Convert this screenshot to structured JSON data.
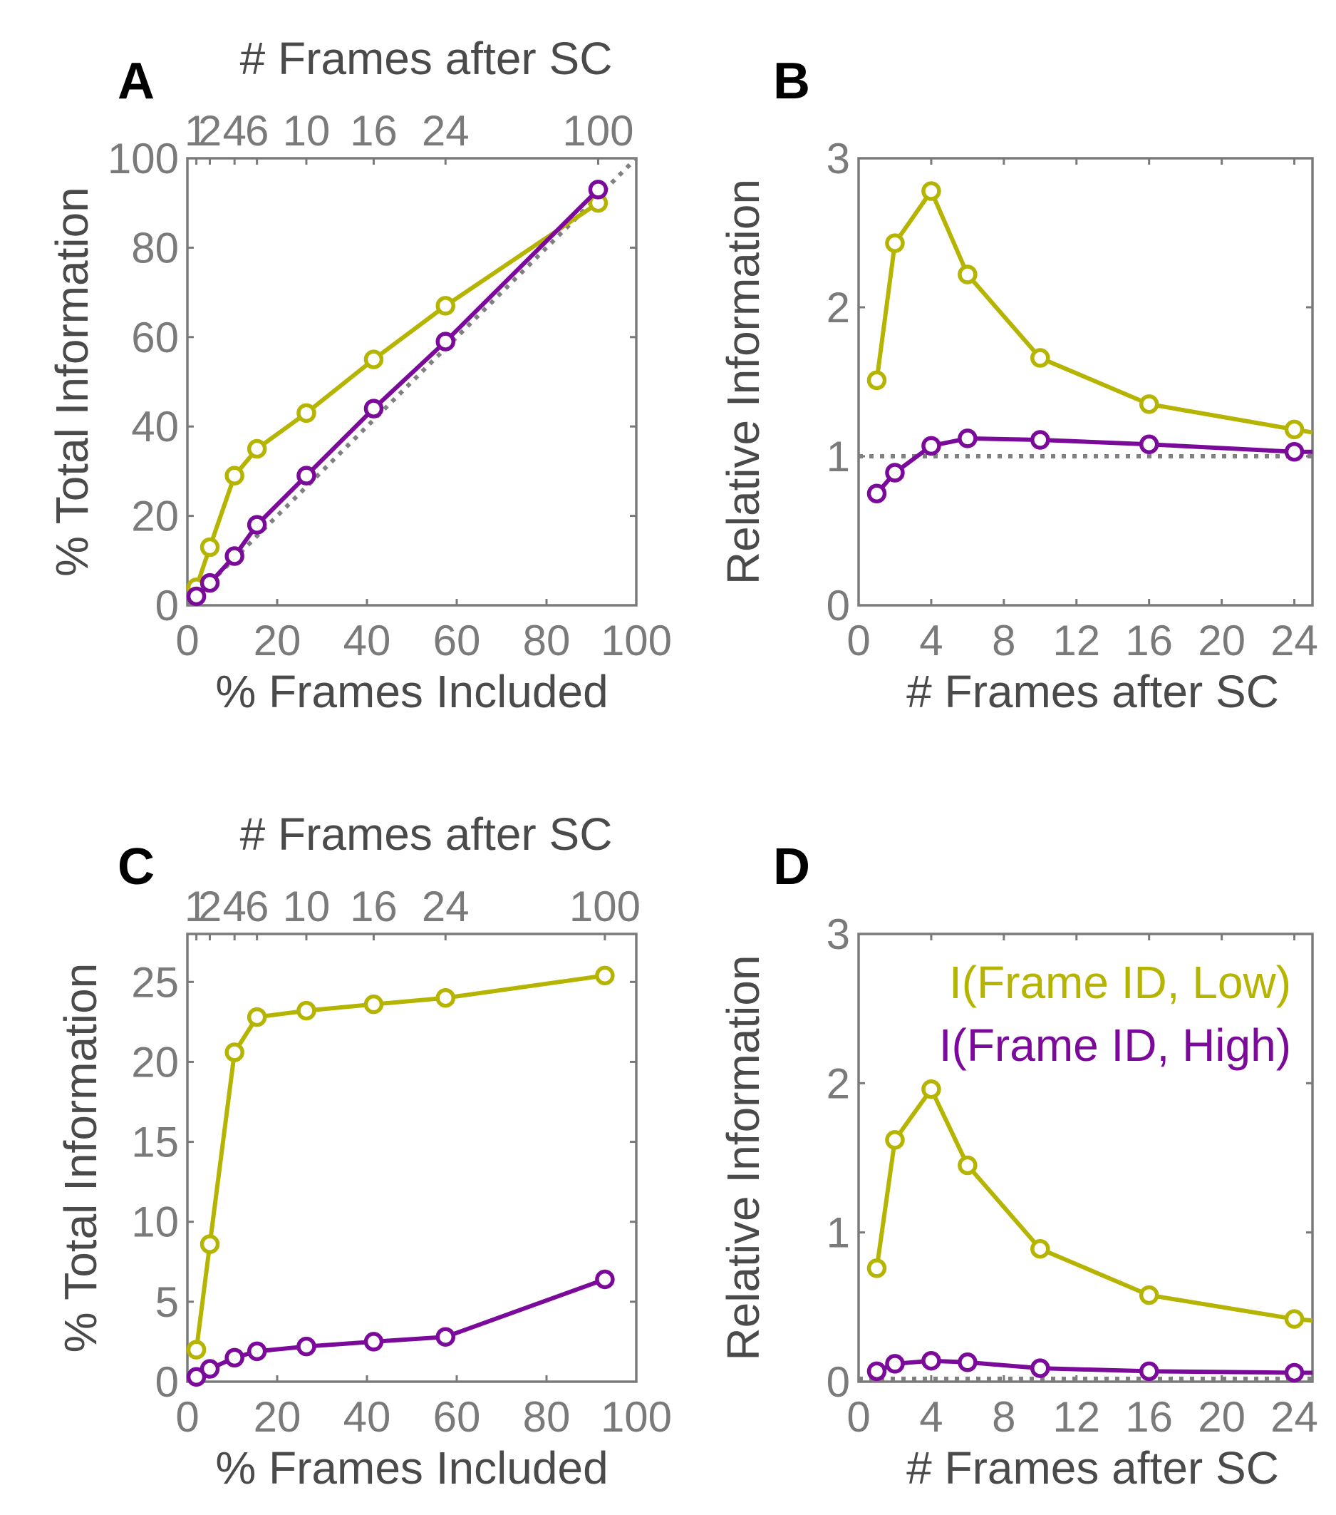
{
  "colors": {
    "low": "#b5b400",
    "high": "#7b0a9b",
    "axis": "#7a7a7a",
    "label": "#4a4a4a",
    "panel_letter": "#000000",
    "reference": "#808080"
  },
  "chart_data": [
    {
      "panel": "A",
      "type": "line",
      "xlabel": "% Frames Included",
      "ylabel": "% Total Information",
      "top_xlabel": "# Frames after SC",
      "xlim": [
        0,
        100
      ],
      "ylim": [
        0,
        100
      ],
      "xticks": [
        "0",
        "20",
        "40",
        "60",
        "80",
        "100"
      ],
      "yticks": [
        "0",
        "20",
        "40",
        "60",
        "80",
        "100"
      ],
      "top_ticks": [
        {
          "x": 2,
          "label": "1"
        },
        {
          "x": 5,
          "label": "2"
        },
        {
          "x": 10.5,
          "label": "4"
        },
        {
          "x": 15.5,
          "label": "6"
        },
        {
          "x": 26.5,
          "label": "10"
        },
        {
          "x": 41.5,
          "label": "16"
        },
        {
          "x": 57.5,
          "label": "24"
        },
        {
          "x": 91.5,
          "label": "100"
        }
      ],
      "reference_line": {
        "style": "dotted",
        "points": [
          [
            0,
            0
          ],
          [
            100,
            100
          ]
        ]
      },
      "series": [
        {
          "name": "I(Frame ID, Low)",
          "color_key": "low",
          "x": [
            2,
            5,
            10.5,
            15.5,
            26.5,
            41.5,
            57.5,
            91.5
          ],
          "y": [
            4,
            13,
            29,
            35,
            43,
            55,
            67,
            90
          ]
        },
        {
          "name": "I(Frame ID, High)",
          "color_key": "high",
          "x": [
            2,
            5,
            10.5,
            15.5,
            26.5,
            41.5,
            57.5,
            91.5
          ],
          "y": [
            2,
            5,
            11,
            18,
            29,
            44,
            59,
            93
          ]
        }
      ]
    },
    {
      "panel": "B",
      "type": "line",
      "xlabel": "# Frames after SC",
      "ylabel": "Relative Information",
      "xlim": [
        0,
        25
      ],
      "ylim": [
        0,
        3
      ],
      "xticks": [
        "0",
        "4",
        "8",
        "12",
        "16",
        "20",
        "24"
      ],
      "yticks": [
        "0",
        "1",
        "2",
        "3"
      ],
      "reference_line": {
        "style": "dotted",
        "y": 1
      },
      "series": [
        {
          "name": "I(Frame ID, Low)",
          "color_key": "low",
          "x": [
            1,
            2,
            4,
            6,
            10,
            16,
            24,
            25
          ],
          "y": [
            1.51,
            2.43,
            2.78,
            2.22,
            1.66,
            1.35,
            1.18,
            1.16
          ]
        },
        {
          "name": "I(Frame ID, High)",
          "color_key": "high",
          "x": [
            1,
            2,
            4,
            6,
            10,
            16,
            24,
            25
          ],
          "y": [
            0.75,
            0.89,
            1.07,
            1.12,
            1.11,
            1.08,
            1.03,
            1.03
          ]
        }
      ]
    },
    {
      "panel": "C",
      "type": "line",
      "xlabel": "% Frames Included",
      "ylabel": "% Total Information",
      "top_xlabel": "# Frames after SC",
      "xlim": [
        0,
        100
      ],
      "ylim": [
        0,
        28
      ],
      "xticks": [
        "0",
        "20",
        "40",
        "60",
        "80",
        "100"
      ],
      "yticks": [
        "0",
        "5",
        "10",
        "15",
        "20",
        "25"
      ],
      "top_ticks": [
        {
          "x": 2,
          "label": "1"
        },
        {
          "x": 5,
          "label": "2"
        },
        {
          "x": 10.5,
          "label": "4"
        },
        {
          "x": 15.5,
          "label": "6"
        },
        {
          "x": 26.5,
          "label": "10"
        },
        {
          "x": 41.5,
          "label": "16"
        },
        {
          "x": 57.5,
          "label": "24"
        },
        {
          "x": 93,
          "label": "100"
        }
      ],
      "series": [
        {
          "name": "I(Frame ID, Low)",
          "color_key": "low",
          "x": [
            2,
            5,
            10.5,
            15.5,
            26.5,
            41.5,
            57.5,
            93
          ],
          "y": [
            2.0,
            8.6,
            20.6,
            22.8,
            23.2,
            23.6,
            24.0,
            25.4
          ]
        },
        {
          "name": "I(Frame ID, High)",
          "color_key": "high",
          "x": [
            2,
            5,
            10.5,
            15.5,
            26.5,
            41.5,
            57.5,
            93
          ],
          "y": [
            0.3,
            0.8,
            1.5,
            1.9,
            2.2,
            2.5,
            2.8,
            6.4
          ]
        }
      ]
    },
    {
      "panel": "D",
      "type": "line",
      "xlabel": "# Frames after SC",
      "ylabel": "Relative Information",
      "xlim": [
        0,
        25
      ],
      "ylim": [
        0,
        3
      ],
      "xticks": [
        "0",
        "4",
        "8",
        "12",
        "16",
        "20",
        "24"
      ],
      "yticks": [
        "0",
        "1",
        "2",
        "3"
      ],
      "reference_line": {
        "style": "dotted",
        "y": 0.02
      },
      "legend": {
        "position": "top-right",
        "entries": [
          "I(Frame ID, Low)",
          "I(Frame ID, High)"
        ]
      },
      "series": [
        {
          "name": "I(Frame ID, Low)",
          "color_key": "low",
          "x": [
            1,
            2,
            4,
            6,
            10,
            16,
            24,
            25
          ],
          "y": [
            0.76,
            1.62,
            1.96,
            1.45,
            0.89,
            0.58,
            0.42,
            0.41
          ]
        },
        {
          "name": "I(Frame ID, High)",
          "color_key": "high",
          "x": [
            1,
            2,
            4,
            6,
            10,
            16,
            24,
            25
          ],
          "y": [
            0.07,
            0.12,
            0.14,
            0.13,
            0.09,
            0.07,
            0.06,
            0.06
          ]
        }
      ]
    }
  ]
}
